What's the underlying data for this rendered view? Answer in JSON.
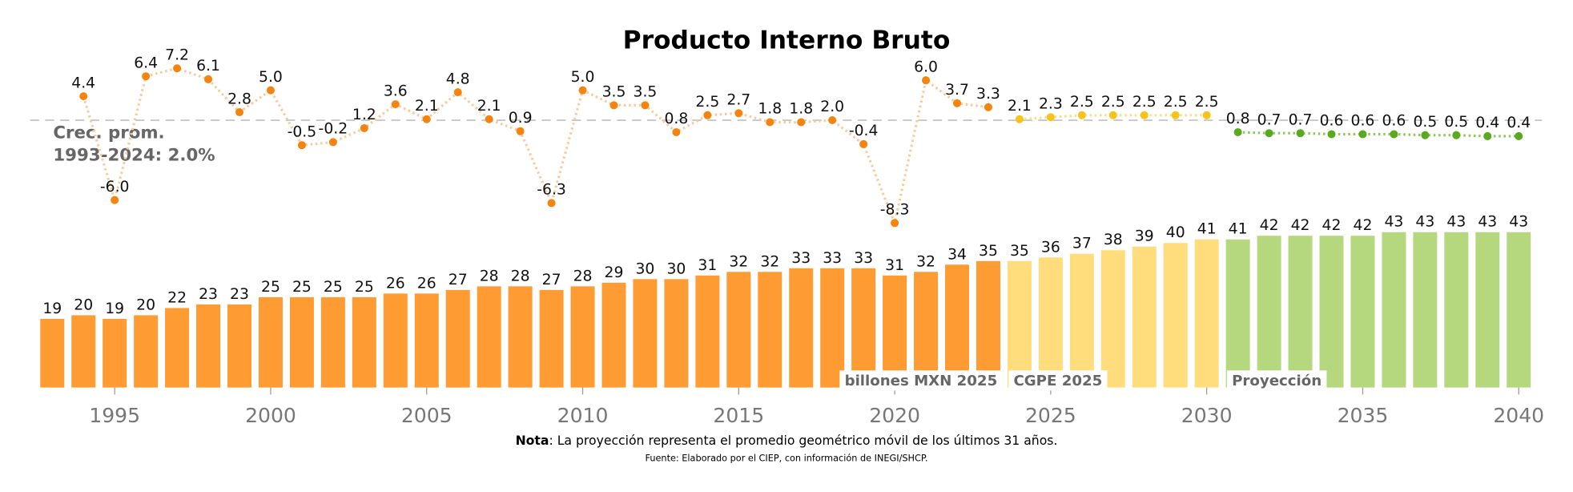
{
  "chart_data": {
    "type": "bar-line",
    "title": "Producto Interno Bruto",
    "note_label": "Nota",
    "note": ": La proyección representa el promedio geométrico móvil de los últimos 31 años.",
    "source": "Fuente: Elaborado por el CIEP, con información de INEGI/SHCP.",
    "annotation": [
      "Crec. prom.",
      "1993-2024: 2.0%"
    ],
    "average": 2.0,
    "xlim": [
      1992,
      2041
    ],
    "xticks": [
      1995,
      2000,
      2005,
      2010,
      2015,
      2020,
      2025,
      2030,
      2035,
      2040
    ],
    "ylim": [
      0,
      45
    ],
    "y2lim": [
      -10,
      8
    ],
    "series": [
      {
        "name": "billones MXN 2025",
        "color": "#ff9b33",
        "x": [
          1993,
          1994,
          1995,
          1996,
          1997,
          1998,
          1999,
          2000,
          2001,
          2002,
          2003,
          2004,
          2005,
          2006,
          2007,
          2008,
          2009,
          2010,
          2011,
          2012,
          2013,
          2014,
          2015,
          2016,
          2017,
          2018,
          2019,
          2020,
          2021,
          2022,
          2023
        ],
        "values": [
          19,
          20,
          19,
          20,
          22,
          23,
          23,
          25,
          25,
          25,
          25,
          26,
          26,
          27,
          28,
          28,
          27,
          28,
          29,
          30,
          30,
          31,
          32,
          32,
          33,
          33,
          33,
          31,
          32,
          34,
          35
        ]
      },
      {
        "name": "CGPE 2025",
        "color": "#ffdc7c",
        "x": [
          2024,
          2025,
          2026,
          2027,
          2028,
          2029,
          2030
        ],
        "values": [
          35,
          36,
          37,
          38,
          39,
          40,
          41
        ]
      },
      {
        "name": "Proyección",
        "color": "#b5d87f",
        "x": [
          2031,
          2032,
          2033,
          2034,
          2035,
          2036,
          2037,
          2038,
          2039,
          2040
        ],
        "values": [
          41,
          42,
          42,
          42,
          42,
          43,
          43,
          43,
          43,
          43
        ]
      }
    ],
    "growth": [
      {
        "color": "#f5840f",
        "line_color": "#f9c99a",
        "axis": "y2",
        "x": [
          1994,
          1995,
          1996,
          1997,
          1998,
          1999,
          2000,
          2001,
          2002,
          2003,
          2004,
          2005,
          2006,
          2007,
          2008,
          2009,
          2010,
          2011,
          2012,
          2013,
          2014,
          2015,
          2016,
          2017,
          2018,
          2019,
          2020,
          2021,
          2022,
          2023
        ],
        "values": [
          4.4,
          -6.0,
          6.4,
          7.2,
          6.1,
          2.8,
          5.0,
          -0.5,
          -0.2,
          1.2,
          3.6,
          2.1,
          4.8,
          2.1,
          0.9,
          -6.3,
          5.0,
          3.5,
          3.5,
          0.8,
          2.5,
          2.7,
          1.8,
          1.8,
          2.0,
          -0.4,
          -8.3,
          6.0,
          3.7,
          3.3
        ],
        "value_labels": [
          "4.4",
          "-6.0",
          "6.4",
          "7.2",
          "6.1",
          "2.8",
          "5.0",
          "-0.5",
          "-0.2",
          "1.2",
          "3.6",
          "2.1",
          "4.8",
          "2.1",
          "0.9",
          "-6.3",
          "5.0",
          "3.5",
          "3.5",
          "0.8",
          "2.5",
          "2.7",
          "1.8",
          "1.8",
          "2.0",
          "-0.4",
          "-8.3",
          "6.0",
          "3.7",
          "3.3"
        ]
      },
      {
        "color": "#f7c21a",
        "line_color": "#f9de8a",
        "axis": "y2",
        "x": [
          2024,
          2025,
          2026,
          2027,
          2028,
          2029,
          2030
        ],
        "values": [
          2.1,
          2.3,
          2.5,
          2.5,
          2.5,
          2.5,
          2.5
        ],
        "value_labels": [
          "2.1",
          "2.3",
          "2.5",
          "2.5",
          "2.5",
          "2.5",
          "2.5"
        ]
      },
      {
        "color": "#5aa91f",
        "line_color": "#8cc85a",
        "axis": "y2",
        "x": [
          2031,
          2032,
          2033,
          2034,
          2035,
          2036,
          2037,
          2038,
          2039,
          2040
        ],
        "values": [
          0.8,
          0.7,
          0.7,
          0.6,
          0.6,
          0.6,
          0.5,
          0.5,
          0.4,
          0.4
        ],
        "value_labels": [
          "0.8",
          "0.7",
          "0.7",
          "0.6",
          "0.6",
          "0.6",
          "0.5",
          "0.5",
          "0.4",
          "0.4"
        ]
      }
    ]
  }
}
